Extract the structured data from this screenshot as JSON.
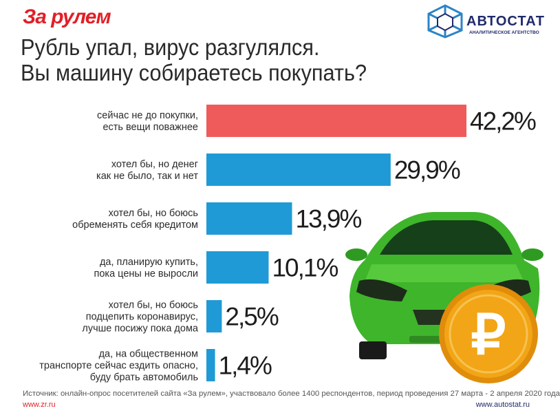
{
  "header": {
    "brand_left": "За рулем",
    "brand_right": "АВТОСТАТ",
    "brand_right_sub": "АНАЛИТИЧЕСКОЕ АГЕНТСТВО",
    "title_line1": "Рубль упал, вирус разгулялся.",
    "title_line2": "Вы машину собираетесь покупать?"
  },
  "chart_data": {
    "type": "bar",
    "orientation": "horizontal",
    "title": "Рубль упал, вирус разгулялся. Вы машину собираетесь покупать?",
    "xlabel": "",
    "ylabel": "",
    "xlim": [
      0,
      42.2
    ],
    "grid": false,
    "categories": [
      [
        "сейчас не до покупки,",
        "есть вещи поважнее"
      ],
      [
        "хотел бы, но денег",
        "как не было, так и нет"
      ],
      [
        "хотел бы, но боюсь",
        "обременять себя кредитом"
      ],
      [
        "да, планирую купить,",
        "пока цены не выросли"
      ],
      [
        "хотел бы, но боюсь",
        "подцепить коронавирус,",
        "лучше посижу пока дома"
      ],
      [
        "да, на общественном",
        "транспорте сейчас ездить опасно,",
        "буду брать автомобиль"
      ]
    ],
    "values": [
      42.2,
      29.9,
      13.9,
      10.1,
      2.5,
      1.4
    ],
    "value_labels": [
      "42,2%",
      "29,9%",
      "13,9%",
      "10,1%",
      "2,5%",
      "1,4%"
    ],
    "bar_colors": [
      "#ef5b5b",
      "#1f9ad6",
      "#1f9ad6",
      "#1f9ad6",
      "#1f9ad6",
      "#1f9ad6"
    ]
  },
  "footer": {
    "source": "Источник: онлайн-опрос посетителей сайта «За рулем», участвовало более 1400 респондентов, период проведения 27 марта - 2 апреля 2020 года",
    "url_left": "www.zr.ru",
    "url_right": "www.autostat.ru"
  },
  "illustration": {
    "car_color": "#3fb52b",
    "coin_color": "#f2a516",
    "coin_symbol": "₽"
  }
}
